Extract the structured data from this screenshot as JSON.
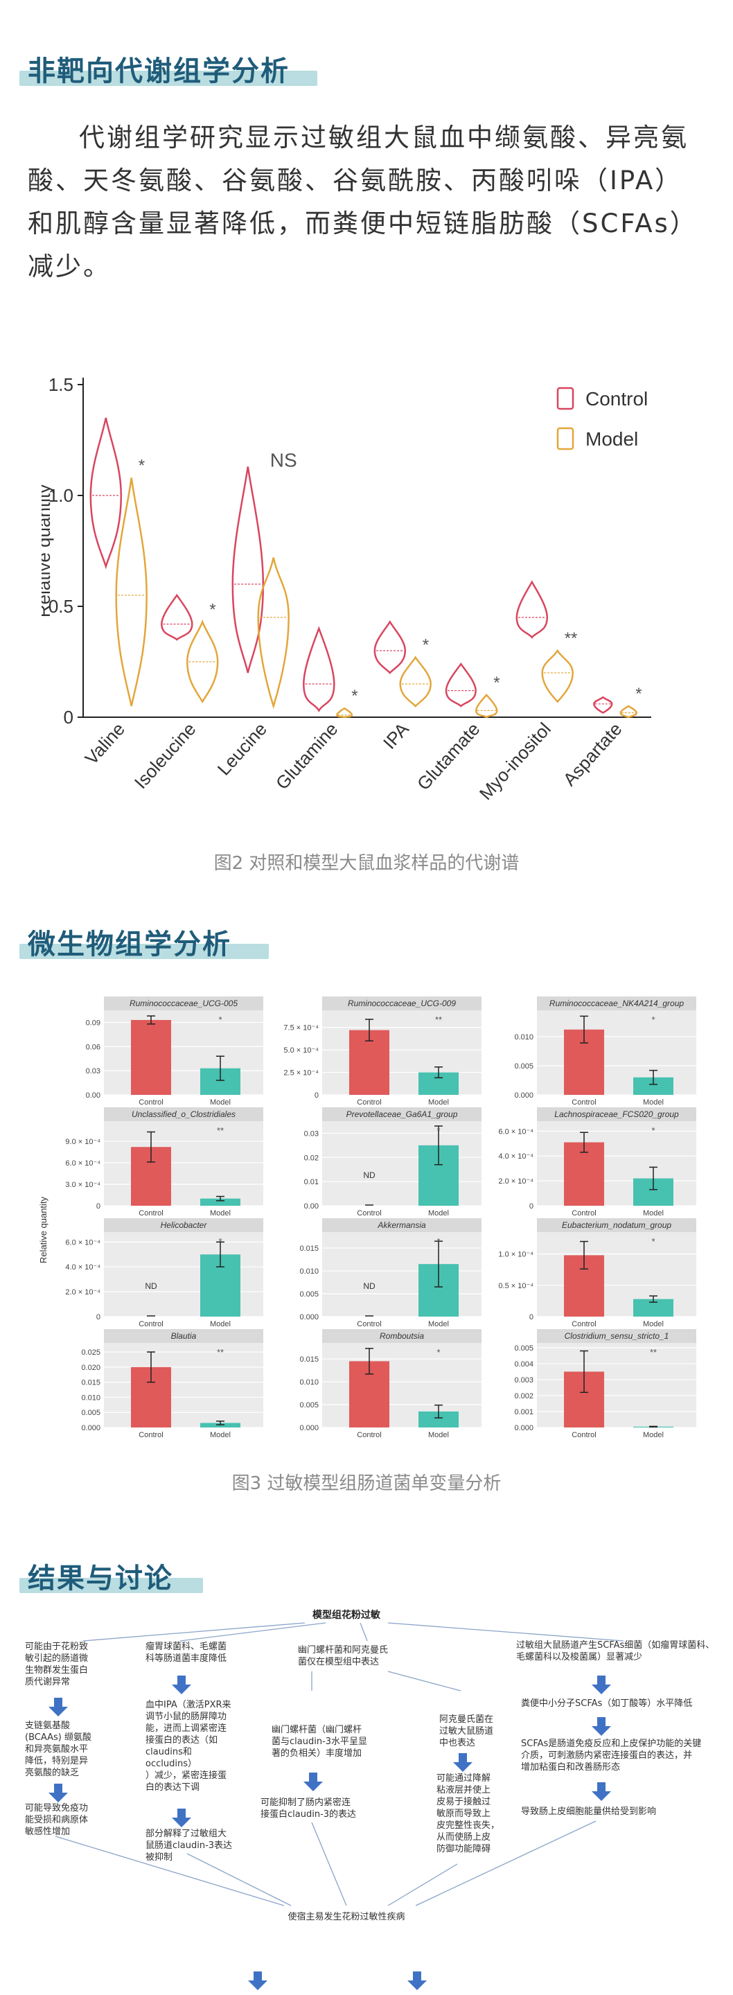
{
  "sections": {
    "untargeted_title": "非靶向代谢组学分析",
    "untargeted_para": "代谢组学研究显示过敏组大鼠血中缬氨酸、异亮氨酸、天冬氨酸、谷氨酸、谷氨酰胺、丙酸吲哚（IPA）和肌醇含量显著降低，而粪便中短链脂肪酸（SCFAs）减少。",
    "microbiome_title": "微生物组学分析",
    "results_title": "结果与讨论"
  },
  "captions": {
    "fig2": "图2 对照和模型大鼠血浆样品的代谢谱",
    "fig3": "图3 过敏模型组肠道菌单变量分析"
  },
  "colors": {
    "control": "#d9455f",
    "model": "#e3a63a",
    "bar_control": "#e05a5a",
    "bar_model": "#47c1b0",
    "panel_bg": "#ebebeb",
    "strip_bg": "#d9d9d9",
    "arrow": "#3f72c4",
    "accent": "#1f5c7a"
  },
  "chart_data": [
    {
      "type": "violin",
      "ylabel": "Relative quantity",
      "ylim": [
        0,
        1.5
      ],
      "yticks": [
        "0",
        "0.5",
        "1.0",
        "1.5"
      ],
      "legend": [
        "Control",
        "Model"
      ],
      "legend_position": "top-right",
      "categories": [
        "Valine",
        "Isoleucine",
        "Leucine",
        "Glutamine",
        "IPA",
        "Glutamate",
        "Myo-inositol",
        "Aspartate"
      ],
      "significance": [
        "*",
        "*",
        "NS",
        "*",
        "*",
        "*",
        "**",
        "*"
      ],
      "series": [
        {
          "name": "Control",
          "min": [
            0.68,
            0.35,
            0.2,
            0.03,
            0.2,
            0.05,
            0.36,
            0.02
          ],
          "max": [
            1.35,
            0.55,
            1.13,
            0.4,
            0.43,
            0.24,
            0.61,
            0.09
          ],
          "median": [
            1.0,
            0.42,
            0.6,
            0.15,
            0.3,
            0.12,
            0.45,
            0.06
          ]
        },
        {
          "name": "Model",
          "min": [
            0.05,
            0.07,
            0.05,
            0.0,
            0.05,
            0.0,
            0.07,
            0.0
          ],
          "max": [
            1.08,
            0.43,
            0.72,
            0.04,
            0.27,
            0.1,
            0.3,
            0.05
          ],
          "median": [
            0.55,
            0.25,
            0.45,
            0.01,
            0.15,
            0.03,
            0.2,
            0.02
          ]
        }
      ]
    },
    {
      "type": "bar",
      "ylabel": "Relative quantity",
      "categories": [
        "Control",
        "Model"
      ],
      "panels": [
        {
          "title": "Ruminococcaceae_UCG-005",
          "sig": "*",
          "yticks": [
            "0.00",
            "0.03",
            "0.06",
            "0.09"
          ],
          "ymax": 0.105,
          "values": [
            0.093,
            0.033
          ],
          "err": [
            0.005,
            0.015
          ],
          "nd": [
            "",
            ""
          ]
        },
        {
          "title": "Ruminococcaceae_UCG-009",
          "sig": "**",
          "yticks": [
            "0",
            "2.5 × 10⁻⁴",
            "5.0 × 10⁻⁴",
            "7.5 × 10⁻⁴"
          ],
          "ymax": 0.00094,
          "values": [
            0.00072,
            0.00025
          ],
          "err": [
            0.00012,
            6e-05
          ],
          "nd": [
            "",
            ""
          ]
        },
        {
          "title": "Ruminococcaceae_NK4A214_group",
          "sig": "*",
          "yticks": [
            "0.000",
            "0.005",
            "0.010"
          ],
          "ymax": 0.0145,
          "values": [
            0.0112,
            0.003
          ],
          "err": [
            0.0023,
            0.0012
          ],
          "nd": [
            "",
            ""
          ]
        },
        {
          "title": "Unclassified_o_Clostridiales",
          "sig": "**",
          "yticks": [
            "0",
            "3.0 × 10⁻⁴",
            "6.0 × 10⁻⁴",
            "9.0 × 10⁻⁴"
          ],
          "ymax": 0.00118,
          "values": [
            0.00082,
            0.0001
          ],
          "err": [
            0.00021,
            3e-05
          ],
          "nd": [
            "",
            ""
          ]
        },
        {
          "title": "Prevotellaceae_Ga6A1_group",
          "sig": "*",
          "yticks": [
            "0.00",
            "0.01",
            "0.02",
            "0.03"
          ],
          "ymax": 0.035,
          "values": [
            0.0,
            0.025
          ],
          "err": [
            0.0,
            0.008
          ],
          "nd": [
            "ND",
            ""
          ]
        },
        {
          "title": "Lachnospiraceae_FCS020_group",
          "sig": "*",
          "yticks": [
            "0",
            "2.0 × 10⁻⁴",
            "4.0 × 10⁻⁴",
            "6.0 × 10⁻⁴"
          ],
          "ymax": 0.00068,
          "values": [
            0.00051,
            0.00022
          ],
          "err": [
            8e-05,
            9e-05
          ],
          "nd": [
            "",
            ""
          ]
        },
        {
          "title": "Helicobacter",
          "sig": "*",
          "yticks": [
            "0",
            "2.0 × 10⁻⁴",
            "4.0 × 10⁻⁴",
            "6.0 × 10⁻⁴"
          ],
          "ymax": 0.00068,
          "values": [
            0.0,
            0.0005
          ],
          "err": [
            0.0,
            0.0001
          ],
          "nd": [
            "ND",
            ""
          ]
        },
        {
          "title": "Akkermansia",
          "sig": "*",
          "yticks": [
            "0.000",
            "0.005",
            "0.010",
            "0.015"
          ],
          "ymax": 0.0185,
          "values": [
            0.0,
            0.0115
          ],
          "err": [
            0.0,
            0.005
          ],
          "nd": [
            "ND",
            ""
          ]
        },
        {
          "title": "Eubacterium_nodatum_group",
          "sig": "*",
          "yticks": [
            "0",
            "0.5 × 10⁻⁴",
            "1.0 × 10⁻⁴"
          ],
          "ymax": 0.000135,
          "values": [
            9.8e-05,
            2.8e-05
          ],
          "err": [
            2.2e-05,
            5e-06
          ],
          "nd": [
            "",
            ""
          ]
        },
        {
          "title": "Blautia",
          "sig": "**",
          "yticks": [
            "0.000",
            "0.005",
            "0.010",
            "0.015",
            "0.020",
            "0.025"
          ],
          "ymax": 0.028,
          "values": [
            0.02,
            0.0015
          ],
          "err": [
            0.005,
            0.0006
          ],
          "nd": [
            "",
            ""
          ]
        },
        {
          "title": "Romboutsia",
          "sig": "*",
          "yticks": [
            "0.000",
            "0.005",
            "0.010",
            "0.015"
          ],
          "ymax": 0.0185,
          "values": [
            0.0145,
            0.0035
          ],
          "err": [
            0.0028,
            0.0014
          ],
          "nd": [
            "",
            ""
          ]
        },
        {
          "title": "Clostridium_sensu_stricto_1",
          "sig": "**",
          "yticks": [
            "0.000",
            "0.001",
            "0.002",
            "0.003",
            "0.004",
            "0.005"
          ],
          "ymax": 0.0053,
          "values": [
            0.0035,
            5e-05
          ],
          "err": [
            0.0013,
            2e-05
          ],
          "nd": [
            "",
            ""
          ]
        }
      ]
    }
  ],
  "flow": {
    "top": "模型组花粉过敏",
    "c1": [
      "可能由于花粉致",
      "敏引起的肠道微",
      "生物群发生蛋白",
      "质代谢异常"
    ],
    "c1b": [
      "支链氨基酸",
      "(BCAAs) 缬氨酸",
      "和异亮氨酸水平",
      "降低，特别是异",
      "亮氨酸的缺乏"
    ],
    "c1c": [
      "可能导致免疫功",
      "能受损和病原体",
      "敏感性增加"
    ],
    "c2": [
      "瘤胃球菌科、毛螺菌",
      "科等肠道菌丰度降低"
    ],
    "c2b": [
      "血中IPA（激活PXR来",
      "调节小鼠的肠屏障功",
      "能，进而上调紧密连",
      "接蛋白的表达（如",
      "claudins和",
      "occludins）",
      "）减少，紧密连接蛋",
      "白的表达下调"
    ],
    "c2c": [
      "部分解释了过敏组大",
      "鼠肠道claudin-3表达",
      "被抑制"
    ],
    "c3": [
      "幽门螺杆菌和阿克曼氏",
      "菌仅在模型组中表达"
    ],
    "c3b": [
      "幽门螺杆菌（幽门螺杆",
      "菌与claudin-3水平呈显",
      "著的负相关）丰度增加"
    ],
    "c3c": [
      "可能抑制了肠内紧密连",
      "接蛋白claudin-3的表达"
    ],
    "c4": [
      "阿克曼氏菌在",
      "过敏大鼠肠道",
      "中也表达"
    ],
    "c4b": [
      "可能通过降解",
      "粘液层并使上",
      "皮易于接触过",
      "敏原而导致上",
      "皮完整性丧失，",
      "从而使肠上皮",
      "防御功能障碍"
    ],
    "c5": [
      "过敏组大鼠肠道产生SCFAs细菌（如瘤胃球菌科、",
      "毛螺菌科以及梭菌属）显著减少"
    ],
    "c5b": [
      "粪便中小分子SCFAs（如丁酸等）水平降低"
    ],
    "c5c": [
      "SCFAs是肠道免疫反应和上皮保护功能的关键",
      "介质，可刺激肠内紧密连接蛋白的表达，并",
      "增加粘蛋白和改善肠形态"
    ],
    "c5d": [
      "导致肠上皮细胞能量供给受到影响"
    ],
    "bottom": "使宿主易发生花粉过敏性疾病"
  }
}
